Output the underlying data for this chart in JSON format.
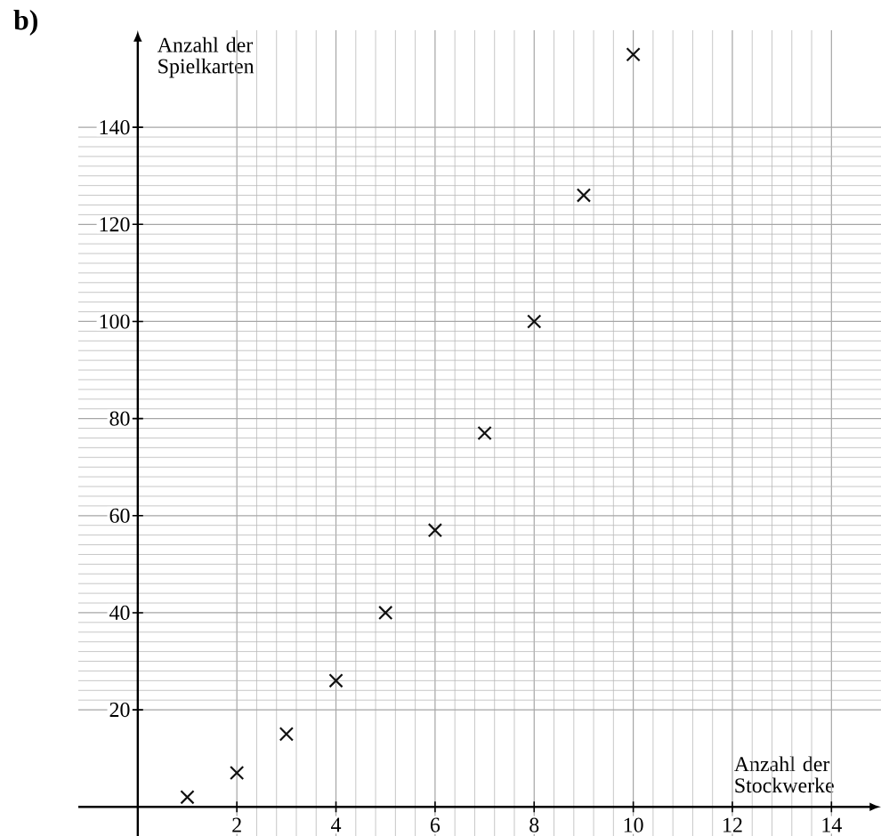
{
  "chart_data": {
    "type": "scatter",
    "title": "b)",
    "xlabel": "Anzahl der Stockwerke",
    "ylabel": "Anzahl der Spielkarten",
    "x": [
      1,
      2,
      3,
      4,
      5,
      6,
      7,
      8,
      9,
      10
    ],
    "values": [
      2,
      7,
      15,
      26,
      40,
      57,
      77,
      100,
      126,
      155
    ],
    "color": "#111111",
    "marker": "cross",
    "grid": true,
    "xlim": [
      -1.2,
      15
    ],
    "ylim": [
      -6,
      160
    ],
    "xticks": [
      2,
      4,
      6,
      8,
      10,
      12,
      14
    ],
    "yticks": [
      20,
      40,
      60,
      80,
      100,
      120,
      140
    ]
  }
}
